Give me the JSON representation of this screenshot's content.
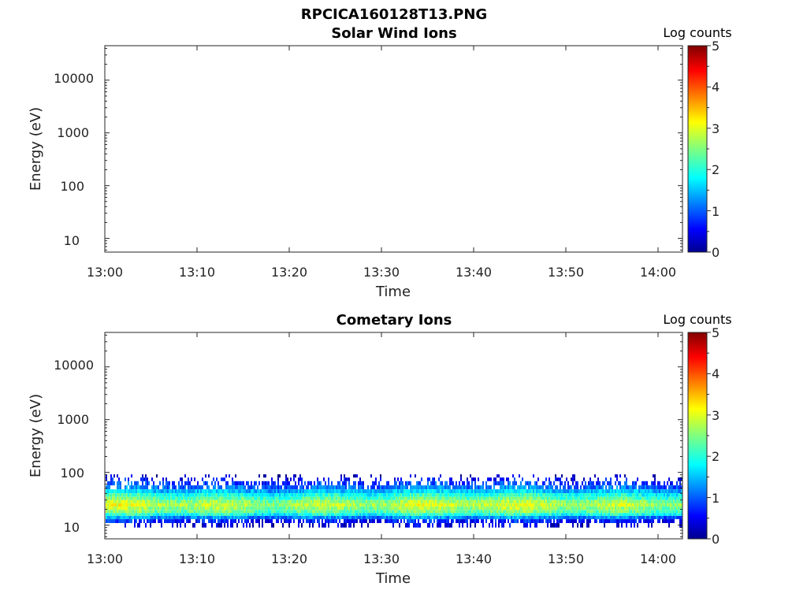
{
  "figure_title": "RPCICA160128T13.PNG",
  "chart_data": [
    {
      "type": "heatmap",
      "title": "Solar Wind Ions",
      "xlabel": "Time",
      "ylabel": "Energy (eV)",
      "x_ticks": [
        "13:00",
        "13:10",
        "13:20",
        "13:30",
        "13:40",
        "13:50",
        "14:00"
      ],
      "x_range": [
        "13:00",
        "14:03"
      ],
      "y_scale": "log",
      "y_ticks": [
        "10",
        "100",
        "1000",
        "10000"
      ],
      "y_range": [
        5.5,
        45000
      ],
      "colorbar": {
        "label": "Log counts",
        "ticks": [
          "0",
          "1",
          "2",
          "3",
          "4",
          "5"
        ],
        "range": [
          0,
          5
        ],
        "colormap": "jet"
      },
      "data_present": false
    },
    {
      "type": "heatmap",
      "title": "Cometary Ions",
      "xlabel": "Time",
      "ylabel": "Energy (eV)",
      "x_ticks": [
        "13:00",
        "13:10",
        "13:20",
        "13:30",
        "13:40",
        "13:50",
        "14:00"
      ],
      "x_range": [
        "13:00",
        "14:03"
      ],
      "y_scale": "log",
      "y_ticks": [
        "10",
        "100",
        "1000",
        "10000"
      ],
      "y_range": [
        5.5,
        45000
      ],
      "colorbar": {
        "label": "Log counts",
        "ticks": [
          "0",
          "1",
          "2",
          "3",
          "4",
          "5"
        ],
        "range": [
          0,
          5
        ],
        "colormap": "jet"
      },
      "data_present": true,
      "energy_profile": {
        "energy_eV": [
          85,
          75,
          62,
          52,
          44,
          37,
          32,
          28,
          24,
          21,
          18,
          16,
          14,
          12,
          10
        ],
        "log_counts": [
          0.3,
          0.6,
          0.9,
          1.2,
          1.6,
          2.0,
          2.3,
          2.6,
          2.8,
          2.6,
          2.4,
          2.0,
          1.3,
          0.7,
          0.4
        ],
        "presence": [
          0.15,
          0.3,
          0.55,
          0.85,
          1.0,
          1.0,
          1.0,
          1.0,
          1.0,
          1.0,
          1.0,
          1.0,
          1.0,
          0.8,
          0.35
        ]
      }
    }
  ]
}
